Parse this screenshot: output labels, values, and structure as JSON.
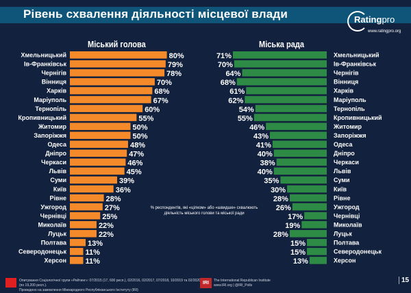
{
  "header": {
    "title": "Рівень схвалення діяльності місцевої влади",
    "logo_name": "Rating",
    "logo_suffix": "pro",
    "logo_url": "www.ratingpro.org"
  },
  "note": "% респондентів, які «цілком» або «швидше» схвалюють діяльність міського голови та міської ради",
  "footer": {
    "source_line1": "Опитування Соціологічної групи «Рейтинг»: 07/2015 (17, 600 респ.), 02/2016, 02/2017, 07/2018, 10/2019 та 02/2020 (по 19,200 респ.).",
    "source_line2": "Проведено на замовлення Міжнародного Республіканського Інституту (IRI)",
    "iri_logo": "IRI",
    "iri_line1": "The International Republican Institute",
    "iri_line2": "www.IRI.org | @IRI_Polls",
    "page": "15"
  },
  "colors": {
    "background": "#12213d",
    "title_band": "#0f5579",
    "mayor": "#f58a2b",
    "council": "#2e8b46"
  },
  "chart_data": [
    {
      "type": "bar",
      "orientation": "horizontal",
      "title": "Міський голова",
      "value_suffix": "%",
      "xlim": [
        0,
        100
      ],
      "categories": [
        "Хмельницький",
        "Ів-Франківськ",
        "Чернігів",
        "Вінниця",
        "Харків",
        "Маріуполь",
        "Тернопіль",
        "Кропивницький",
        "Житомир",
        "Запоріжжя",
        "Одеса",
        "Дніпро",
        "Черкаси",
        "Львів",
        "Суми",
        "Київ",
        "Рівне",
        "Ужгород",
        "Чернівці",
        "Миколаїв",
        "Луцьк",
        "Полтава",
        "Северодонецьк",
        "Херсон"
      ],
      "values": [
        80,
        79,
        78,
        70,
        68,
        67,
        60,
        55,
        50,
        50,
        48,
        47,
        46,
        45,
        39,
        36,
        28,
        27,
        25,
        22,
        22,
        13,
        11,
        11
      ]
    },
    {
      "type": "bar",
      "orientation": "horizontal",
      "title": "Міська рада",
      "value_suffix": "%",
      "xlim": [
        0,
        100
      ],
      "categories": [
        "Хмельницький",
        "Ів-Франківськ",
        "Чернігів",
        "Вінниця",
        "Харків",
        "Маріуполь",
        "Тернопіль",
        "Кропивницький",
        "Житомир",
        "Запоріжжя",
        "Одеса",
        "Дніпро",
        "Черкаси",
        "Львів",
        "Суми",
        "Київ",
        "Рівне",
        "Ужгород",
        "Чернівці",
        "Миколаїв",
        "Луцьк",
        "Полтава",
        "Северодонецьк",
        "Херсон"
      ],
      "values": [
        71,
        70,
        64,
        68,
        61,
        62,
        54,
        55,
        46,
        43,
        41,
        40,
        38,
        40,
        35,
        30,
        28,
        26,
        17,
        19,
        28,
        15,
        15,
        13
      ]
    }
  ]
}
